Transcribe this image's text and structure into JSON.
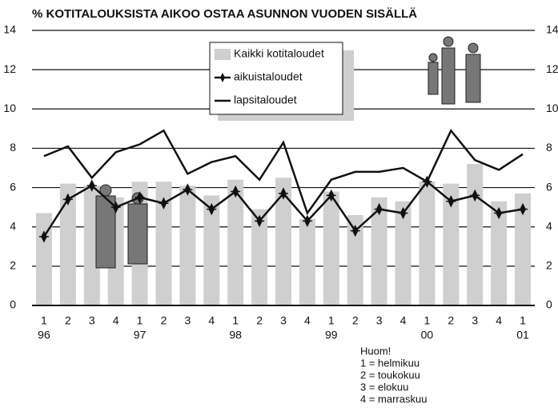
{
  "chart_data": {
    "type": "bar_line",
    "title": "% KOTITALOUKSISTA AIKOO OSTAA ASUNNON VUODEN SISÄLLÄ",
    "categories": [
      "1",
      "2",
      "3",
      "4",
      "1",
      "2",
      "3",
      "4",
      "1",
      "2",
      "3",
      "4",
      "1",
      "2",
      "3",
      "4",
      "1",
      "2",
      "3",
      "4",
      "1"
    ],
    "years": [
      "96",
      null,
      null,
      null,
      "97",
      null,
      null,
      null,
      "98",
      null,
      null,
      null,
      "99",
      null,
      null,
      null,
      "00",
      null,
      null,
      null,
      "01"
    ],
    "series": [
      {
        "name": "Kaikki kotitaloudet",
        "type": "bar",
        "color": "#cfcfcf",
        "values": [
          4.7,
          6.2,
          6.1,
          5.5,
          6.3,
          6.3,
          6.1,
          5.6,
          6.4,
          4.9,
          6.5,
          4.4,
          5.8,
          4.6,
          5.5,
          5.3,
          6.3,
          6.2,
          7.2,
          5.3,
          5.7
        ]
      },
      {
        "name": "aikuistaloudet",
        "type": "line",
        "marker": true,
        "color": "#111111",
        "values": [
          3.5,
          5.4,
          6.1,
          5.0,
          5.5,
          5.2,
          5.9,
          4.9,
          5.8,
          4.3,
          5.7,
          4.3,
          5.6,
          3.8,
          4.9,
          4.7,
          6.3,
          5.3,
          5.6,
          4.7,
          4.9
        ]
      },
      {
        "name": "lapsitaloudet",
        "type": "line",
        "marker": false,
        "color": "#111111",
        "values": [
          7.6,
          8.1,
          6.5,
          7.8,
          8.2,
          8.9,
          6.7,
          7.3,
          7.6,
          6.4,
          8.3,
          4.7,
          6.4,
          6.8,
          6.8,
          7.0,
          6.3,
          8.9,
          7.4,
          6.9,
          7.7
        ]
      }
    ],
    "ylim": [
      0,
      14
    ],
    "yticks": [
      0,
      2,
      4,
      6,
      8,
      10,
      12,
      14
    ],
    "grid": true,
    "note": [
      "Huom!",
      "1 = helmikuu",
      "2 = toukokuu",
      "3 = elokuu",
      "4 = marraskuu"
    ]
  }
}
